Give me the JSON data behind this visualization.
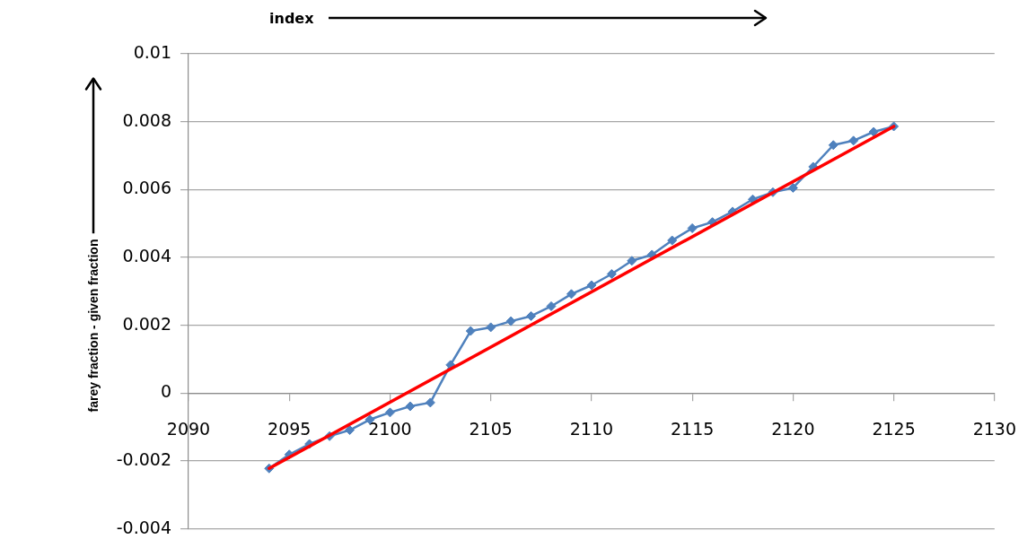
{
  "chart_data": {
    "type": "line",
    "xlabel": "index",
    "ylabel": "farey fraction - given fraction",
    "x": [
      2094,
      2095,
      2096,
      2097,
      2098,
      2099,
      2100,
      2101,
      2102,
      2103,
      2104,
      2105,
      2106,
      2107,
      2108,
      2109,
      2110,
      2111,
      2112,
      2113,
      2114,
      2115,
      2116,
      2117,
      2118,
      2119,
      2120,
      2121,
      2122,
      2123,
      2124,
      2125
    ],
    "series": [
      {
        "color": "#4f81bd",
        "values": [
          -0.00222,
          -0.00181,
          -0.0015,
          -0.00127,
          -0.00109,
          -0.00078,
          -0.00057,
          -0.00039,
          -0.00028,
          0.00083,
          0.00183,
          0.00194,
          0.00212,
          0.00227,
          0.00256,
          0.00292,
          0.00318,
          0.00351,
          0.0039,
          0.00408,
          0.0045,
          0.00486,
          0.00504,
          0.00535,
          0.00571,
          0.00592,
          0.00605,
          0.00667,
          0.00731,
          0.00744,
          0.0077,
          0.00786
        ]
      },
      {
        "type": "line",
        "x": [
          2094,
          2125
        ],
        "color": "#ff0000",
        "values": [
          -0.00222,
          0.00786
        ],
        "marker": "none"
      }
    ],
    "xlim": [
      2090,
      2130
    ],
    "xticks": [
      2090,
      2095,
      2100,
      2105,
      2110,
      2115,
      2120,
      2125,
      2130
    ],
    "ylim": [
      -0.004,
      0.01
    ],
    "yticks": [
      -0.004,
      -0.002,
      0,
      0.002,
      0.004,
      0.006,
      0.008,
      0.01
    ],
    "grid": "y",
    "marker": "diamond",
    "line_style": "solid"
  }
}
